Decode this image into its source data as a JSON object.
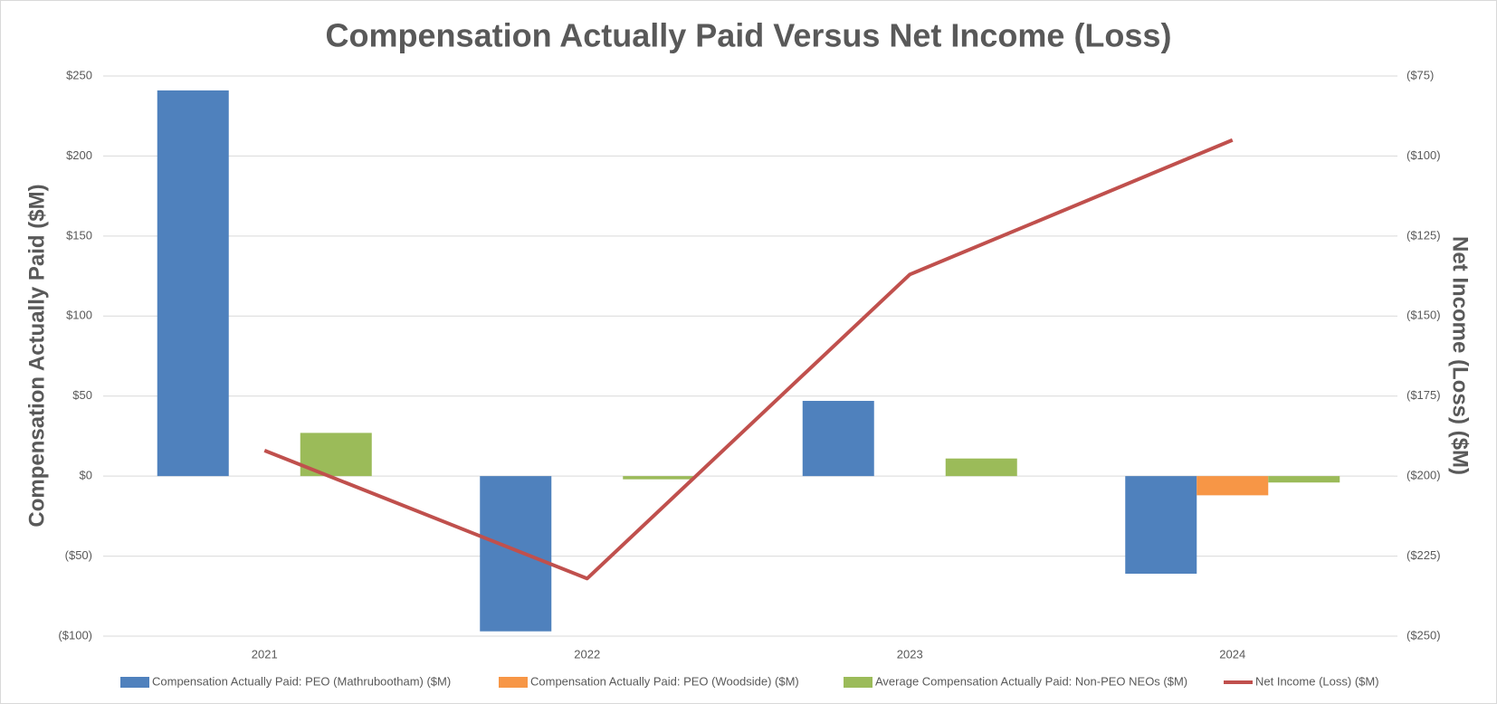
{
  "chart_data": {
    "type": "bar",
    "title": "Compensation Actually Paid Versus Net Income (Loss)",
    "y_label": "Compensation Actually Paid ($M)",
    "y2_label": "Net Income (Loss) ($M)",
    "categories": [
      "2021",
      "2022",
      "2023",
      "2024"
    ],
    "series": [
      {
        "name": "Compensation Actually Paid: PEO (Mathrubootham) ($M)",
        "color": "#4f81bd",
        "type": "bar",
        "values": [
          241,
          -97,
          47,
          -61
        ]
      },
      {
        "name": "Compensation Actually Paid: PEO (Woodside) ($M)",
        "color": "#f79646",
        "type": "bar",
        "values": [
          null,
          null,
          null,
          -12
        ]
      },
      {
        "name": "Average Compensation Actually Paid: Non-PEO NEOs ($M)",
        "color": "#9bbb59",
        "type": "bar",
        "values": [
          27,
          -2,
          11,
          -4
        ]
      },
      {
        "name": "Net Income (Loss) ($M)",
        "color": "#c0504d",
        "type": "line",
        "axis": "y2",
        "values": [
          -192,
          -232,
          -137,
          -95
        ]
      }
    ],
    "ylim": [
      -100,
      250
    ],
    "yticks": [
      {
        "value": 250,
        "label": "$250"
      },
      {
        "value": 200,
        "label": "$200"
      },
      {
        "value": 150,
        "label": "$150"
      },
      {
        "value": 100,
        "label": "$100"
      },
      {
        "value": 50,
        "label": "$50"
      },
      {
        "value": 0,
        "label": "$0"
      },
      {
        "value": -50,
        "label": "($50)"
      },
      {
        "value": -100,
        "label": "($100)"
      }
    ],
    "y2lim": [
      -250,
      -75
    ],
    "y2ticks": [
      {
        "value": -75,
        "label": "($75)"
      },
      {
        "value": -100,
        "label": "($100)"
      },
      {
        "value": -125,
        "label": "($125)"
      },
      {
        "value": -150,
        "label": "($150)"
      },
      {
        "value": -175,
        "label": "($175)"
      },
      {
        "value": -200,
        "label": "($200)"
      },
      {
        "value": -225,
        "label": "($225)"
      },
      {
        "value": -250,
        "label": "($250)"
      }
    ],
    "grid": true,
    "legend": "bottom"
  }
}
